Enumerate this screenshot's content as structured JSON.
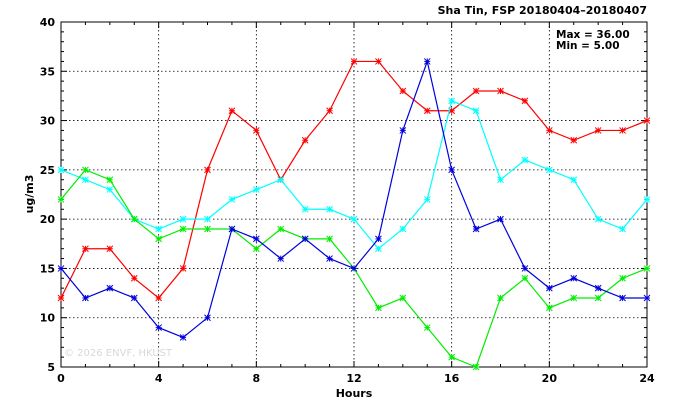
{
  "chart_data": {
    "type": "line",
    "title": "Sha Tin, FSP 20180404–20180407",
    "stats": {
      "max": "Max = 36.00",
      "min": "Min =  5.00"
    },
    "xlabel": "Hours",
    "ylabel": "ug/m3",
    "watermark": "© 2026  ENVF, HKUST",
    "xlim": [
      0,
      24
    ],
    "ylim": [
      5,
      40
    ],
    "xticks": [
      0,
      4,
      8,
      12,
      16,
      20,
      24
    ],
    "yticks": [
      5,
      10,
      15,
      20,
      25,
      30,
      35,
      40
    ],
    "grid": true,
    "x": [
      0,
      1,
      2,
      3,
      4,
      5,
      6,
      7,
      8,
      9,
      10,
      11,
      12,
      13,
      14,
      15,
      16,
      17,
      18,
      19,
      20,
      21,
      22,
      23,
      24
    ],
    "series": [
      {
        "color": "#ff0000",
        "values": [
          12,
          17,
          17,
          14,
          12,
          15,
          25,
          31,
          29,
          24,
          28,
          31,
          36,
          36,
          33,
          31,
          31,
          33,
          33,
          32,
          29,
          28,
          29,
          29,
          30
        ]
      },
      {
        "color": "#00ffff",
        "values": [
          25,
          24,
          23,
          20,
          19,
          20,
          20,
          22,
          23,
          24,
          21,
          21,
          20,
          17,
          19,
          22,
          32,
          31,
          24,
          26,
          25,
          24,
          20,
          19,
          22
        ]
      },
      {
        "color": "#00ee00",
        "values": [
          22,
          25,
          24,
          20,
          18,
          19,
          19,
          19,
          17,
          19,
          18,
          18,
          15,
          11,
          12,
          9,
          6,
          5,
          12,
          14,
          11,
          12,
          12,
          14,
          15
        ]
      },
      {
        "color": "#0000dd",
        "values": [
          15,
          12,
          13,
          12,
          9,
          8,
          10,
          19,
          18,
          16,
          18,
          16,
          15,
          18,
          29,
          36,
          25,
          19,
          20,
          15,
          13,
          14,
          13,
          12,
          12
        ]
      }
    ]
  }
}
